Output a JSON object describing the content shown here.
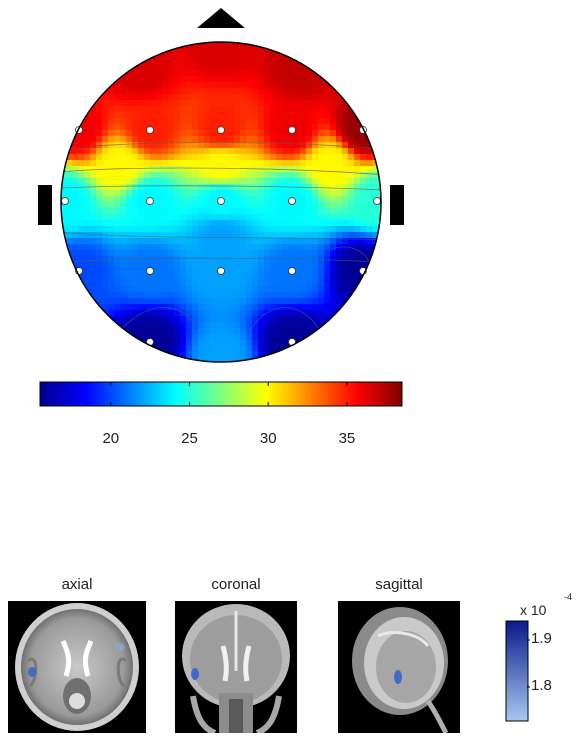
{
  "chart_data": [
    {
      "type": "heatmap",
      "title": "",
      "colorbar": {
        "colormap": "jet",
        "range": [
          15.5,
          38.5
        ],
        "ticks": [
          20,
          25,
          30,
          35
        ],
        "tick_labels": [
          "20",
          "25",
          "30",
          "35"
        ]
      },
      "electrodes": [
        {
          "row": 0,
          "col": 0,
          "value": 36
        },
        {
          "row": 0,
          "col": 1,
          "value": 35
        },
        {
          "row": 0,
          "col": 2,
          "value": 35
        },
        {
          "row": 0,
          "col": 3,
          "value": 36
        },
        {
          "row": 0,
          "col": 4,
          "value": 38
        },
        {
          "row": 1,
          "col": 0,
          "value": 24
        },
        {
          "row": 1,
          "col": 1,
          "value": 24
        },
        {
          "row": 1,
          "col": 2,
          "value": 24
        },
        {
          "row": 1,
          "col": 3,
          "value": 24
        },
        {
          "row": 1,
          "col": 4,
          "value": 25
        },
        {
          "row": 2,
          "col": 0,
          "value": 20
        },
        {
          "row": 2,
          "col": 1,
          "value": 21
        },
        {
          "row": 2,
          "col": 2,
          "value": 22
        },
        {
          "row": 2,
          "col": 3,
          "value": 21
        },
        {
          "row": 2,
          "col": 4,
          "value": 16
        },
        {
          "row": 3,
          "col": 1,
          "value": 16
        },
        {
          "row": 3,
          "col": 3,
          "value": 16
        }
      ]
    },
    {
      "type": "heatmap",
      "views": [
        "axial",
        "coronal",
        "sagittal"
      ],
      "colorbar": {
        "ticks": [
          1.8,
          1.9
        ],
        "tick_labels": [
          "1.8",
          "1.9"
        ],
        "multiplier_label": "x 10",
        "multiplier_exponent": "-4",
        "color_low": "#a9c8ef",
        "color_high": "#0a1a8a"
      }
    }
  ]
}
